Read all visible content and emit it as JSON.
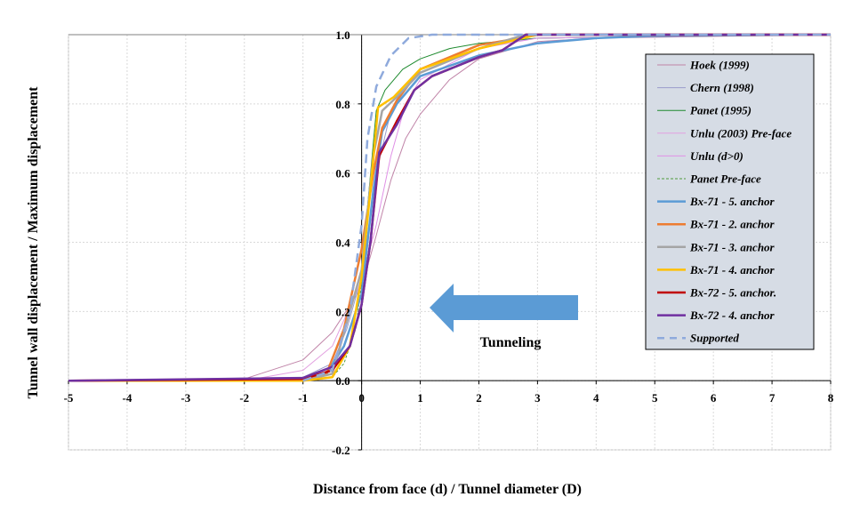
{
  "chart_data": {
    "type": "line",
    "title": "",
    "xlabel": "Distance from face (d) / Tunnel diameter (D)",
    "ylabel": "Tunnel wall displacement / Maximum displacement",
    "xlim": [
      -5,
      8
    ],
    "ylim": [
      -0.2,
      1.0
    ],
    "xticks": [
      "-5",
      "-4",
      "-3",
      "-2",
      "-1",
      "0",
      "1",
      "2",
      "3",
      "4",
      "5",
      "6",
      "7",
      "8"
    ],
    "yticks": [
      "-0.2",
      "0.0",
      "0.2",
      "0.4",
      "0.6",
      "0.8",
      "1.0"
    ],
    "grid": true,
    "legend_position": "right",
    "annotation": "Tunneling",
    "arrow_color": "#5B9BD5",
    "series": [
      {
        "name": "Hoek (1999)",
        "color": "#C084A8",
        "width": 1,
        "dash": "",
        "points": [
          [
            -5,
            0
          ],
          [
            -2,
            0.005
          ],
          [
            -1,
            0.06
          ],
          [
            -0.5,
            0.14
          ],
          [
            0,
            0.27
          ],
          [
            0.25,
            0.42
          ],
          [
            0.5,
            0.58
          ],
          [
            0.75,
            0.7
          ],
          [
            1,
            0.77
          ],
          [
            1.5,
            0.87
          ],
          [
            2,
            0.93
          ],
          [
            3,
            0.98
          ],
          [
            4,
            0.99
          ],
          [
            8,
            1
          ]
        ]
      },
      {
        "name": "Chern (1998)",
        "color": "#9A9CCB",
        "width": 1,
        "dash": "",
        "points": [
          [
            -5,
            0
          ],
          [
            -1,
            0.01
          ],
          [
            -0.5,
            0.05
          ],
          [
            -0.25,
            0.15
          ],
          [
            0,
            0.3
          ],
          [
            0.25,
            0.6
          ],
          [
            0.5,
            0.78
          ],
          [
            1,
            0.9
          ],
          [
            2,
            0.97
          ],
          [
            3,
            0.99
          ],
          [
            8,
            1
          ]
        ]
      },
      {
        "name": "Panet (1995)",
        "color": "#1E8A2E",
        "width": 1,
        "dash": "",
        "points": [
          [
            0,
            0.28
          ],
          [
            0.1,
            0.5
          ],
          [
            0.25,
            0.78
          ],
          [
            0.4,
            0.84
          ],
          [
            0.7,
            0.9
          ],
          [
            1,
            0.93
          ],
          [
            1.5,
            0.96
          ],
          [
            2,
            0.975
          ],
          [
            3,
            0.99
          ],
          [
            8,
            1
          ]
        ]
      },
      {
        "name": "Unlu (2003) Pre-face",
        "color": "#E2A0E0",
        "width": 1,
        "dash": "",
        "points": [
          [
            -5,
            0
          ],
          [
            -2,
            0
          ],
          [
            -1,
            0.03
          ],
          [
            -0.5,
            0.1
          ],
          [
            0,
            0.29
          ]
        ]
      },
      {
        "name": "Unlu (d>0)",
        "color": "#E090E6",
        "width": 1,
        "dash": "",
        "points": [
          [
            0,
            0.29
          ],
          [
            0.25,
            0.45
          ],
          [
            0.5,
            0.65
          ],
          [
            0.75,
            0.8
          ],
          [
            1,
            0.87
          ],
          [
            2,
            0.96
          ],
          [
            3,
            0.99
          ],
          [
            8,
            1
          ]
        ]
      },
      {
        "name": "Panet Pre-face",
        "color": "#4E9A3A",
        "width": 1,
        "dash": "3,2",
        "points": [
          [
            -1,
            0
          ],
          [
            -0.5,
            0.01
          ],
          [
            -0.3,
            0.05
          ],
          [
            -0.1,
            0.15
          ],
          [
            0,
            0.28
          ]
        ]
      },
      {
        "name": "Bx-71 - 5. anchor",
        "color": "#5B9BD5",
        "width": 2.5,
        "dash": "",
        "points": [
          [
            -5,
            0
          ],
          [
            -1,
            0
          ],
          [
            -0.6,
            0.02
          ],
          [
            -0.3,
            0.1
          ],
          [
            0,
            0.25
          ],
          [
            0.2,
            0.55
          ],
          [
            0.35,
            0.72
          ],
          [
            0.6,
            0.8
          ],
          [
            1,
            0.88
          ],
          [
            2,
            0.94
          ],
          [
            3,
            0.975
          ],
          [
            4,
            0.99
          ],
          [
            5,
            0.997
          ],
          [
            8,
            1
          ]
        ]
      },
      {
        "name": "Bx-71 - 2. anchor",
        "color": "#ED7D31",
        "width": 2.5,
        "dash": "",
        "points": [
          [
            -5,
            0
          ],
          [
            -1,
            0
          ],
          [
            -0.6,
            0.02
          ],
          [
            -0.3,
            0.15
          ],
          [
            0,
            0.38
          ],
          [
            0.2,
            0.6
          ],
          [
            0.35,
            0.73
          ],
          [
            0.6,
            0.81
          ],
          [
            1,
            0.9
          ],
          [
            2,
            0.97
          ],
          [
            2.7,
            0.99
          ],
          [
            3,
            1
          ],
          [
            8,
            1
          ]
        ]
      },
      {
        "name": "Bx-71 - 3. anchor",
        "color": "#A5A5A5",
        "width": 2.5,
        "dash": "",
        "points": [
          [
            -5,
            0
          ],
          [
            -1,
            0
          ],
          [
            -0.5,
            0.02
          ],
          [
            0,
            0.32
          ],
          [
            0.2,
            0.65
          ],
          [
            0.35,
            0.78
          ],
          [
            0.6,
            0.82
          ],
          [
            1,
            0.89
          ],
          [
            2,
            0.96
          ],
          [
            2.8,
            1
          ],
          [
            8,
            1
          ]
        ]
      },
      {
        "name": "Bx-71 - 4. anchor",
        "color": "#FFC000",
        "width": 2.5,
        "dash": "",
        "points": [
          [
            -5,
            0
          ],
          [
            -1,
            0
          ],
          [
            -0.5,
            0.01
          ],
          [
            -0.2,
            0.1
          ],
          [
            0,
            0.3
          ],
          [
            0.15,
            0.55
          ],
          [
            0.28,
            0.79
          ],
          [
            0.55,
            0.82
          ],
          [
            1,
            0.9
          ],
          [
            2,
            0.96
          ],
          [
            3,
            1
          ],
          [
            8,
            1
          ]
        ]
      },
      {
        "name": "Bx-72 - 5. anchor.",
        "color": "#C00000",
        "width": 2.5,
        "dash": "",
        "points": [
          [
            -5,
            0
          ],
          [
            -1,
            0.005
          ],
          [
            -0.5,
            0.03
          ],
          [
            -0.2,
            0.1
          ],
          [
            0,
            0.22
          ],
          [
            0.15,
            0.4
          ],
          [
            0.3,
            0.65
          ],
          [
            0.6,
            0.75
          ],
          [
            0.9,
            0.84
          ],
          [
            1.2,
            0.88
          ],
          [
            2,
            0.935
          ],
          [
            2.4,
            0.955
          ],
          [
            2.8,
            1
          ],
          [
            8,
            1
          ]
        ]
      },
      {
        "name": "Bx-72 - 4. anchor",
        "color": "#7030A0",
        "width": 2.5,
        "dash": "",
        "points": [
          [
            -5,
            0
          ],
          [
            -1,
            0.008
          ],
          [
            -0.5,
            0.04
          ],
          [
            -0.2,
            0.1
          ],
          [
            0,
            0.22
          ],
          [
            0.15,
            0.4
          ],
          [
            0.3,
            0.66
          ],
          [
            0.6,
            0.74
          ],
          [
            0.9,
            0.84
          ],
          [
            1.2,
            0.88
          ],
          [
            2,
            0.935
          ],
          [
            2.4,
            0.955
          ],
          [
            2.8,
            1
          ],
          [
            8,
            1
          ]
        ]
      },
      {
        "name": "Supported",
        "color": "#8FAADC",
        "width": 2.5,
        "dash": "10,6",
        "points": [
          [
            -1,
            0
          ],
          [
            -0.5,
            0.03
          ],
          [
            -0.2,
            0.2
          ],
          [
            0,
            0.45
          ],
          [
            0.1,
            0.7
          ],
          [
            0.25,
            0.85
          ],
          [
            0.5,
            0.94
          ],
          [
            0.8,
            0.99
          ],
          [
            1.2,
            1
          ],
          [
            8,
            1
          ]
        ]
      }
    ]
  }
}
